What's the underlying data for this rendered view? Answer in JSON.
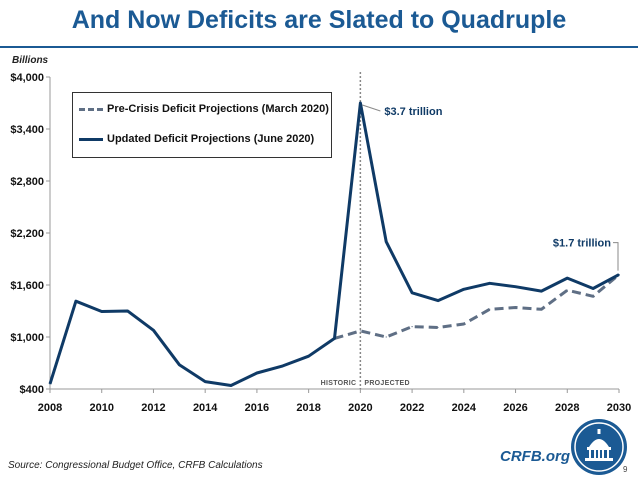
{
  "title": "And Now Deficits are Slated to Quadruple",
  "units_label": "Billions",
  "chart_data": {
    "type": "line",
    "xlim": [
      2008,
      2030
    ],
    "ylim": [
      400,
      4000
    ],
    "x_ticks": [
      2008,
      2010,
      2012,
      2014,
      2016,
      2018,
      2020,
      2022,
      2024,
      2026,
      2028,
      2030
    ],
    "y_ticks": [
      {
        "value": 400,
        "label": "$400"
      },
      {
        "value": 1000,
        "label": "$1,000"
      },
      {
        "value": 1600,
        "label": "$1,600"
      },
      {
        "value": 2200,
        "label": "$2,200"
      },
      {
        "value": 2800,
        "label": "$2,800"
      },
      {
        "value": 3400,
        "label": "$3,400"
      },
      {
        "value": 4000,
        "label": "$4,000"
      }
    ],
    "grid": false,
    "legend_position": "top-left",
    "series": [
      {
        "name": "Pre-Crisis Deficit Projections (March 2020)",
        "style": "dashed",
        "color": "#5f6f85",
        "x": [
          2019,
          2020,
          2021,
          2022,
          2023,
          2024,
          2025,
          2026,
          2027,
          2028,
          2029,
          2030
        ],
        "values": [
          984,
          1070,
          1000,
          1120,
          1110,
          1150,
          1320,
          1340,
          1320,
          1540,
          1470,
          1720
        ]
      },
      {
        "name": "Updated Deficit Projections (June 2020)",
        "style": "solid",
        "color": "#0f3a66",
        "x": [
          2008,
          2009,
          2010,
          2011,
          2012,
          2013,
          2014,
          2015,
          2016,
          2017,
          2018,
          2019,
          2020,
          2021,
          2022,
          2023,
          2024,
          2025,
          2026,
          2027,
          2028,
          2029,
          2030
        ],
        "values": [
          459,
          1413,
          1294,
          1300,
          1077,
          680,
          485,
          440,
          585,
          666,
          779,
          984,
          3700,
          2100,
          1510,
          1420,
          1550,
          1620,
          1580,
          1530,
          1680,
          1560,
          1720
        ]
      }
    ],
    "divider": {
      "x": 2020,
      "left_label": "HISTORIC",
      "right_label": "PROJECTED"
    },
    "annotations": [
      {
        "x": 2020,
        "y": 3700,
        "text": "$3.7 trillion"
      },
      {
        "x": 2030,
        "y": 1720,
        "text": "$1.7 trillion"
      }
    ]
  },
  "source": "Source: Congressional Budget Office, CRFB Calculations",
  "site": "CRFB.org",
  "page_number": "9",
  "colors": {
    "title": "#1b5a94",
    "solid_line": "#0f3a66",
    "dashed_line": "#5f6f85"
  }
}
